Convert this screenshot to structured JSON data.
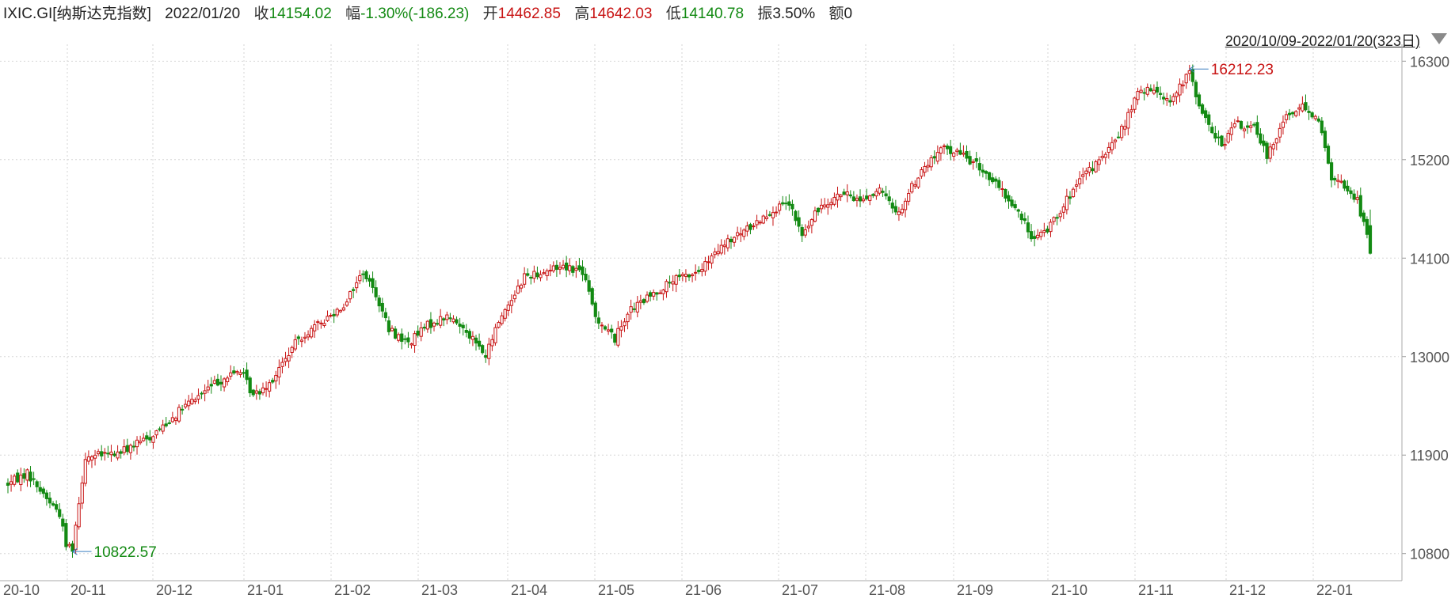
{
  "header": {
    "ticker": "IXIC.GI[纳斯达克指数]",
    "date": "2022/01/20",
    "close_label": "收",
    "close_value": "14154.02",
    "change_label": "幅",
    "change_value": "-1.30%(-186.23)",
    "open_label": "开",
    "open_value": "14462.85",
    "high_label": "高",
    "high_value": "14642.03",
    "low_label": "低",
    "low_value": "14140.78",
    "amplitude_label": "振",
    "amplitude_value": "3.50%",
    "amount_label": "额",
    "amount_value": "0"
  },
  "range_selector": {
    "label": "2020/10/09-2022/01/20(323日)",
    "icon": "triangle-down-icon"
  },
  "colors": {
    "up": "#c81414",
    "down": "#138a13",
    "grid": "#d6d6d6",
    "axis_text": "#555555",
    "annotation_line": "#3a7fc0"
  },
  "chart_data": {
    "type": "candlestick",
    "title": "",
    "x_tick_labels": [
      "20-10",
      "20-11",
      "20-12",
      "21-01",
      "21-02",
      "21-03",
      "21-04",
      "21-05",
      "21-06",
      "21-07",
      "21-08",
      "21-09",
      "21-10",
      "21-11",
      "21-12",
      "22-01"
    ],
    "y_ticks": [
      10800,
      11900,
      13000,
      14100,
      15200,
      16300
    ],
    "ylim": [
      10550,
      16400
    ],
    "grid": true,
    "annotations": [
      {
        "label": "16212.23",
        "value": 16212.23,
        "type": "max",
        "month": "21-11"
      },
      {
        "label": "10822.57",
        "value": 10822.57,
        "type": "min",
        "month": "20-10"
      }
    ],
    "month_close_approx": [
      {
        "month": "20-10",
        "open": 11580,
        "close": 10911
      },
      {
        "month": "20-11",
        "open": 10911,
        "close": 12198
      },
      {
        "month": "20-12",
        "open": 12198,
        "close": 12888
      },
      {
        "month": "21-01",
        "open": 12888,
        "close": 13070
      },
      {
        "month": "21-02",
        "open": 13070,
        "close": 13192
      },
      {
        "month": "21-03",
        "open": 13192,
        "close": 13247
      },
      {
        "month": "21-04",
        "open": 13247,
        "close": 13962
      },
      {
        "month": "21-05",
        "open": 13962,
        "close": 13749
      },
      {
        "month": "21-06",
        "open": 13749,
        "close": 14504
      },
      {
        "month": "21-07",
        "open": 14504,
        "close": 14673
      },
      {
        "month": "21-08",
        "open": 14673,
        "close": 15259
      },
      {
        "month": "21-09",
        "open": 15259,
        "close": 14448
      },
      {
        "month": "21-10",
        "open": 14448,
        "close": 15498
      },
      {
        "month": "21-11",
        "open": 15498,
        "close": 15538
      },
      {
        "month": "21-12",
        "open": 15538,
        "close": 15645
      },
      {
        "month": "22-01",
        "open": 15645,
        "close": 14154
      }
    ],
    "anchors": [
      [
        0,
        11580
      ],
      [
        6,
        11700
      ],
      [
        12,
        11420
      ],
      [
        16,
        11250
      ],
      [
        18,
        10900
      ],
      [
        20,
        10870
      ],
      [
        24,
        11880
      ],
      [
        34,
        11920
      ],
      [
        44,
        12100
      ],
      [
        54,
        12420
      ],
      [
        64,
        12700
      ],
      [
        72,
        12850
      ],
      [
        76,
        12560
      ],
      [
        82,
        12750
      ],
      [
        90,
        13200
      ],
      [
        96,
        13350
      ],
      [
        104,
        13580
      ],
      [
        110,
        13950
      ],
      [
        114,
        13700
      ],
      [
        118,
        13300
      ],
      [
        124,
        13150
      ],
      [
        130,
        13350
      ],
      [
        136,
        13450
      ],
      [
        142,
        13300
      ],
      [
        148,
        13000
      ],
      [
        152,
        13400
      ],
      [
        160,
        13900
      ],
      [
        166,
        13950
      ],
      [
        172,
        14020
      ],
      [
        178,
        13950
      ],
      [
        182,
        13450
      ],
      [
        188,
        13200
      ],
      [
        192,
        13500
      ],
      [
        200,
        13700
      ],
      [
        206,
        13850
      ],
      [
        214,
        13950
      ],
      [
        222,
        14250
      ],
      [
        230,
        14450
      ],
      [
        236,
        14620
      ],
      [
        242,
        14700
      ],
      [
        246,
        14350
      ],
      [
        252,
        14700
      ],
      [
        258,
        14820
      ],
      [
        264,
        14750
      ],
      [
        270,
        14850
      ],
      [
        276,
        14600
      ],
      [
        280,
        14900
      ],
      [
        284,
        15120
      ],
      [
        290,
        15330
      ],
      [
        296,
        15250
      ],
      [
        302,
        15080
      ],
      [
        306,
        14920
      ],
      [
        312,
        14660
      ],
      [
        318,
        14300
      ],
      [
        322,
        14430
      ],
      [
        328,
        14750
      ],
      [
        334,
        15050
      ],
      [
        340,
        15250
      ],
      [
        346,
        15600
      ],
      [
        350,
        15950
      ],
      [
        356,
        15980
      ],
      [
        360,
        15850
      ],
      [
        364,
        16050
      ],
      [
        366,
        16180
      ],
      [
        370,
        15700
      ],
      [
        376,
        15350
      ],
      [
        380,
        15600
      ],
      [
        386,
        15550
      ],
      [
        390,
        15250
      ],
      [
        396,
        15700
      ],
      [
        402,
        15800
      ],
      [
        406,
        15640
      ],
      [
        410,
        15000
      ],
      [
        414,
        14900
      ],
      [
        418,
        14750
      ],
      [
        421,
        14340
      ],
      [
        422,
        14154
      ]
    ]
  }
}
